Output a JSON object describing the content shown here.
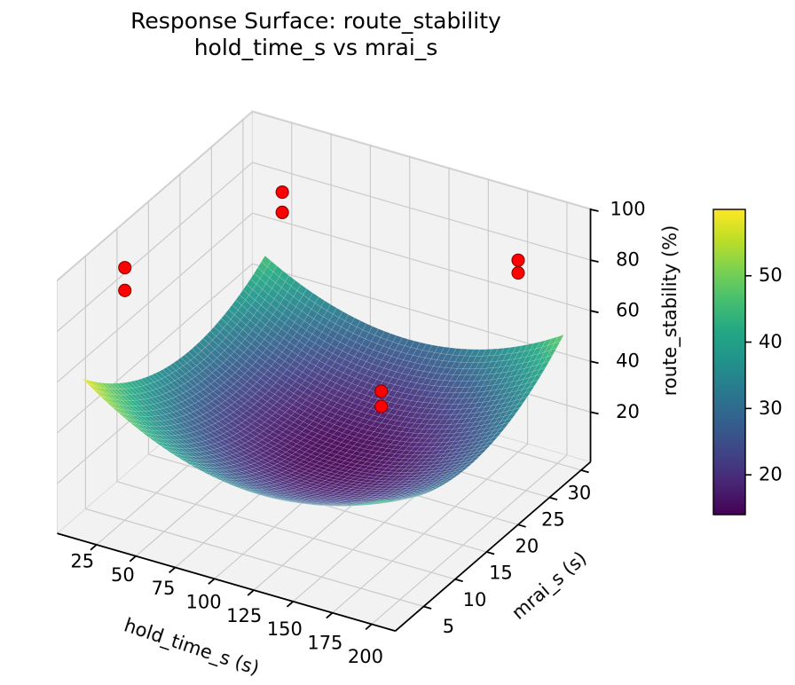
{
  "chart_data": {
    "type": "surface_3d",
    "title_lines": {
      "line1": "Response Surface: route_stability",
      "line2": "hold_time_s vs mrai_s"
    },
    "view": {
      "elev": 30,
      "azim": -60
    },
    "x_axis": {
      "label": "hold_time_s (s)",
      "ticks": [
        25,
        50,
        75,
        100,
        125,
        150,
        175,
        200
      ],
      "data_range": [
        10,
        200
      ]
    },
    "y_axis": {
      "label": "mrai_s (s)",
      "ticks": [
        5,
        10,
        15,
        20,
        25,
        30
      ],
      "data_range": [
        2,
        31
      ]
    },
    "z_axis": {
      "label": "route_stability (%)",
      "ticks": [
        20,
        40,
        60,
        80,
        100
      ]
    },
    "surface": {
      "colormap": "viridis",
      "alpha": 0.93,
      "vmin": 14,
      "vmax": 60,
      "z_model": {
        "base": 14,
        "a": 20.6,
        "b": 20.6,
        "c": 4.8,
        "x0": 111.5,
        "sx": 101.5,
        "y0": 17.5,
        "sy": 15.5
      },
      "min_value_est": 14,
      "corner_values_est": {
        "(10,2)": 60,
        "(10,31)": 46,
        "(200,2)": 46,
        "(200,31)": 49
      }
    },
    "scatter": {
      "color": "#ff0000",
      "marker_radius_px": 7,
      "points_est": [
        {
          "hold_time_s": 25,
          "mrai_s": 5,
          "route_stability": 100
        },
        {
          "hold_time_s": 25,
          "mrai_s": 5,
          "route_stability": 91
        },
        {
          "hold_time_s": 25,
          "mrai_s": 30,
          "route_stability": 76
        },
        {
          "hold_time_s": 25,
          "mrai_s": 30,
          "route_stability": 68
        },
        {
          "hold_time_s": 175,
          "mrai_s": 30,
          "route_stability": 76
        },
        {
          "hold_time_s": 175,
          "mrai_s": 30,
          "route_stability": 71
        },
        {
          "hold_time_s": 140,
          "mrai_s": 17,
          "route_stability": 46
        },
        {
          "hold_time_s": 140,
          "mrai_s": 17,
          "route_stability": 40
        }
      ]
    },
    "colorbar": {
      "vmin": 14,
      "vmax": 60,
      "ticks": [
        20,
        30,
        40,
        50
      ]
    },
    "colors": {
      "pane": "#f2f2f2",
      "pane_edge": "#dcdcdc",
      "grid": "#cbcbcb",
      "spine": "#000000",
      "background": "#ffffff",
      "scatter_edge": "#8b0000"
    }
  }
}
